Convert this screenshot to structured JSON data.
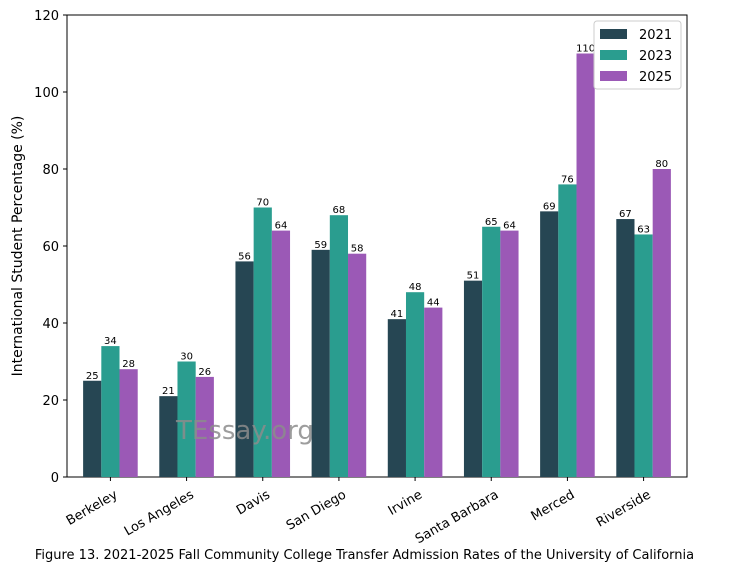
{
  "chart_data": {
    "type": "bar",
    "ylabel": "International Student Percentage (%)",
    "xlabel": "",
    "ylim": [
      0,
      120
    ],
    "yticks": [
      0,
      20,
      40,
      60,
      80,
      100,
      120
    ],
    "categories": [
      "Berkeley",
      "Los Angeles",
      "Davis",
      "San Diego",
      "Irvine",
      "Santa Barbara",
      "Merced",
      "Riverside"
    ],
    "series": [
      {
        "name": "2021",
        "color": "#264653",
        "values": [
          25,
          21,
          56,
          59,
          41,
          51,
          69,
          67
        ]
      },
      {
        "name": "2023",
        "color": "#2a9d8f",
        "values": [
          34,
          30,
          70,
          68,
          48,
          65,
          76,
          63
        ]
      },
      {
        "name": "2025",
        "color": "#9b59b6",
        "values": [
          28,
          26,
          64,
          58,
          44,
          64,
          110,
          80
        ]
      }
    ],
    "data_label_text": [
      [
        "25",
        "21",
        "56",
        "59",
        "41",
        "51",
        "69",
        "67"
      ],
      [
        "34",
        "30",
        "70",
        "68",
        "48",
        "65",
        "76",
        "63"
      ],
      [
        "28",
        "26",
        "64",
        "58",
        "44",
        "64",
        "110",
        "80"
      ]
    ],
    "legend_position": "top-right",
    "grid": false
  },
  "watermark": "TEssay.org",
  "caption": "Figure 13. 2021-2025 Fall Community College Transfer Admission Rates of the University of California"
}
